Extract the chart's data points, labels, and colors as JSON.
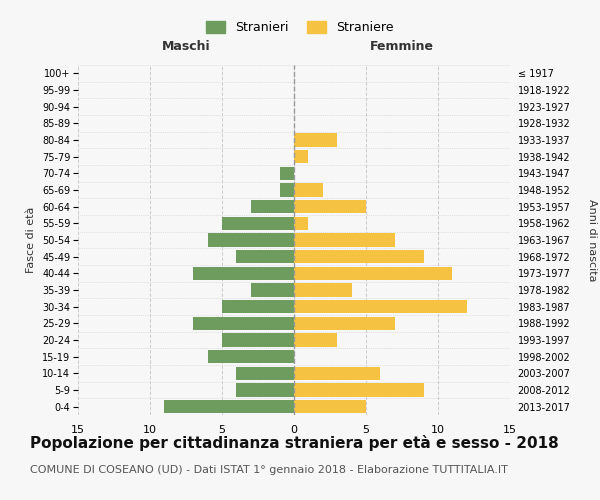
{
  "age_groups": [
    "0-4",
    "5-9",
    "10-14",
    "15-19",
    "20-24",
    "25-29",
    "30-34",
    "35-39",
    "40-44",
    "45-49",
    "50-54",
    "55-59",
    "60-64",
    "65-69",
    "70-74",
    "75-79",
    "80-84",
    "85-89",
    "90-94",
    "95-99",
    "100+"
  ],
  "birth_years": [
    "2013-2017",
    "2008-2012",
    "2003-2007",
    "1998-2002",
    "1993-1997",
    "1988-1992",
    "1983-1987",
    "1978-1982",
    "1973-1977",
    "1968-1972",
    "1963-1967",
    "1958-1962",
    "1953-1957",
    "1948-1952",
    "1943-1947",
    "1938-1942",
    "1933-1937",
    "1928-1932",
    "1923-1927",
    "1918-1922",
    "≤ 1917"
  ],
  "maschi": [
    9,
    4,
    4,
    6,
    5,
    7,
    5,
    3,
    7,
    4,
    6,
    5,
    3,
    1,
    1,
    0,
    0,
    0,
    0,
    0,
    0
  ],
  "femmine": [
    5,
    9,
    6,
    0,
    3,
    7,
    12,
    4,
    11,
    9,
    7,
    1,
    5,
    2,
    0,
    1,
    3,
    0,
    0,
    0,
    0
  ],
  "color_maschi": "#6e9c5e",
  "color_femmine": "#f5c242",
  "background_color": "#f7f7f7",
  "grid_color": "#cccccc",
  "title": "Popolazione per cittadinanza straniera per età e sesso - 2018",
  "subtitle": "COMUNE DI COSEANO (UD) - Dati ISTAT 1° gennaio 2018 - Elaborazione TUTTITALIA.IT",
  "xlabel_left": "Maschi",
  "xlabel_right": "Femmine",
  "ylabel_left": "Fasce di età",
  "ylabel_right": "Anni di nascita",
  "legend_maschi": "Stranieri",
  "legend_femmine": "Straniere",
  "xlim": 15,
  "title_fontsize": 11,
  "subtitle_fontsize": 8
}
